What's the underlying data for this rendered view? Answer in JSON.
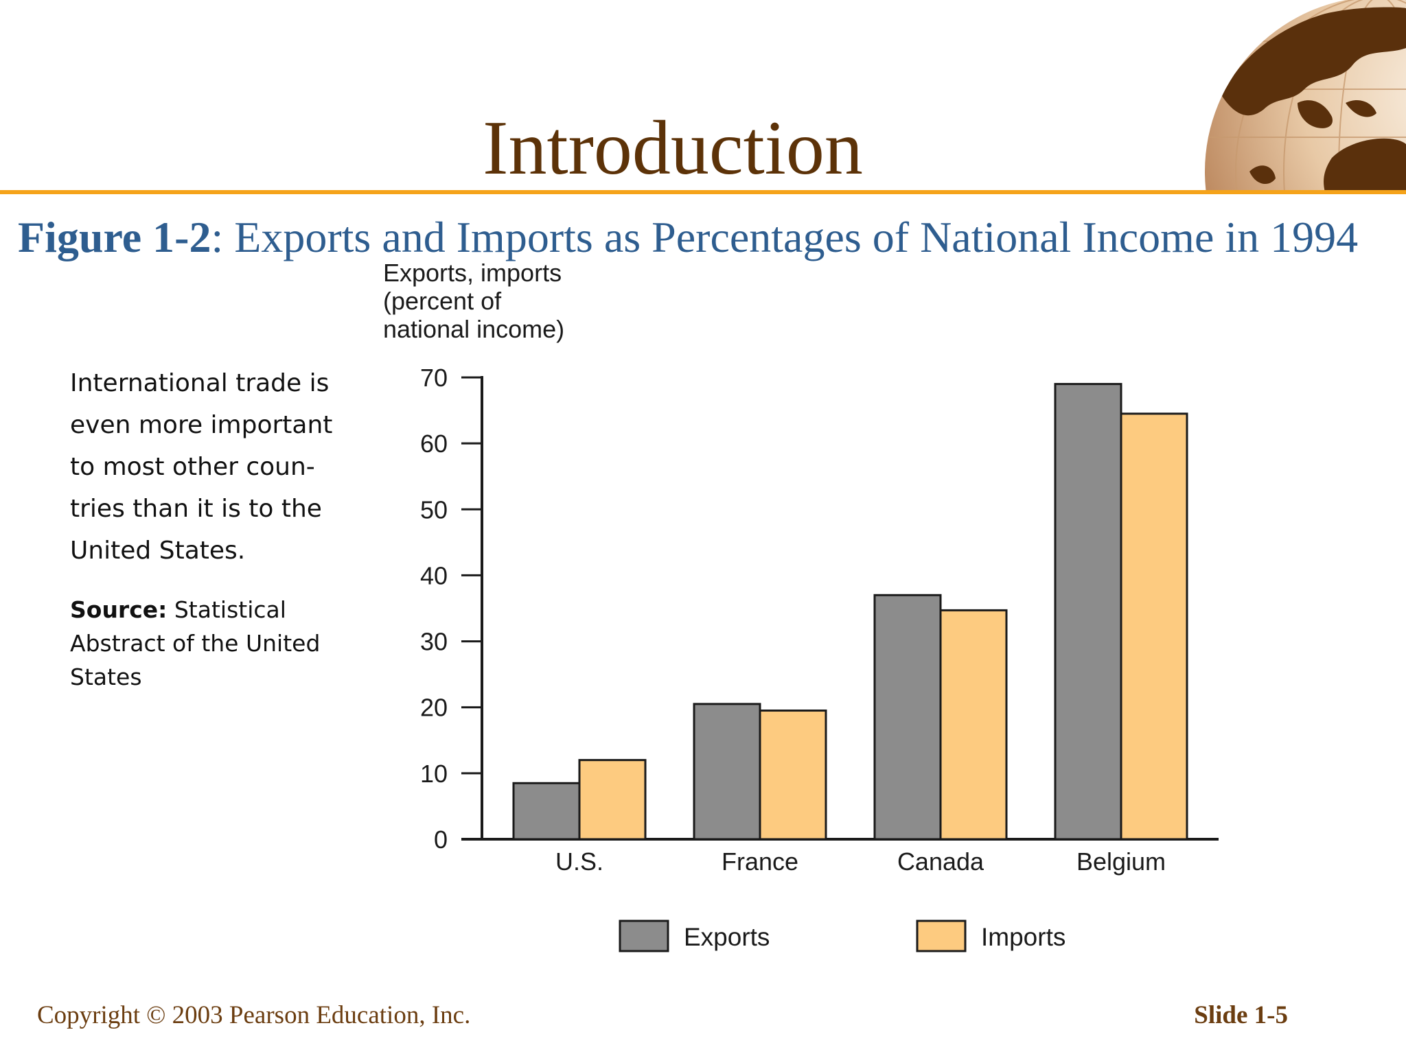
{
  "slide": {
    "title": "Introduction",
    "figure_label": "Figure 1-2",
    "figure_caption": ": Exports and Imports as Percentages of National Income in 1994",
    "side_text": "International trade is even more important to most other coun-tries than it is to the United States.",
    "source_label": "Source:",
    "source_text": "Statistical Abstract of the United States",
    "footer_copyright": "Copyright © 2003 Pearson Education, Inc.",
    "footer_slide": "Slide 1-5"
  },
  "chart_data": {
    "type": "bar",
    "ylabel": [
      "Exports, imports",
      "(percent of",
      "national income)"
    ],
    "xlabel": "",
    "categories": [
      "U.S.",
      "France",
      "Canada",
      "Belgium"
    ],
    "series": [
      {
        "name": "Exports",
        "color": "#8c8c8c",
        "values": [
          8.5,
          20.5,
          37,
          69
        ]
      },
      {
        "name": "Imports",
        "color": "#fdcb80",
        "values": [
          12,
          19.5,
          34.7,
          64.5
        ]
      }
    ],
    "ylim": [
      0,
      70
    ],
    "yticks": [
      0,
      10,
      20,
      30,
      40,
      50,
      60,
      70
    ],
    "grid": false,
    "legend_position": "bottom-center"
  }
}
